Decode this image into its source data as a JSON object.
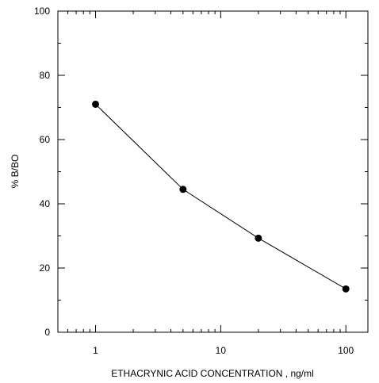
{
  "chart_data": {
    "type": "line",
    "x_scale": "log",
    "xlim": [
      0.5,
      150
    ],
    "ylim": [
      0,
      100
    ],
    "xlabel": "ETHACRYNIC ACID  CONCENTRATION , ng/ml",
    "ylabel": "% B/BO",
    "x_ticks": [
      1,
      10,
      100
    ],
    "x_tick_labels": [
      "1",
      "10",
      "100"
    ],
    "y_ticks": [
      0,
      20,
      40,
      60,
      80,
      100
    ],
    "y_tick_labels": [
      "0",
      "20",
      "40",
      "60",
      "80",
      "100"
    ],
    "grid": false,
    "legend": "none",
    "series": [
      {
        "x": [
          1,
          5,
          20,
          100
        ],
        "y": [
          71,
          44.5,
          29.3,
          13.5
        ]
      }
    ],
    "colors": {
      "line": "#000000",
      "marker": "#000000",
      "axis": "#000000"
    }
  }
}
